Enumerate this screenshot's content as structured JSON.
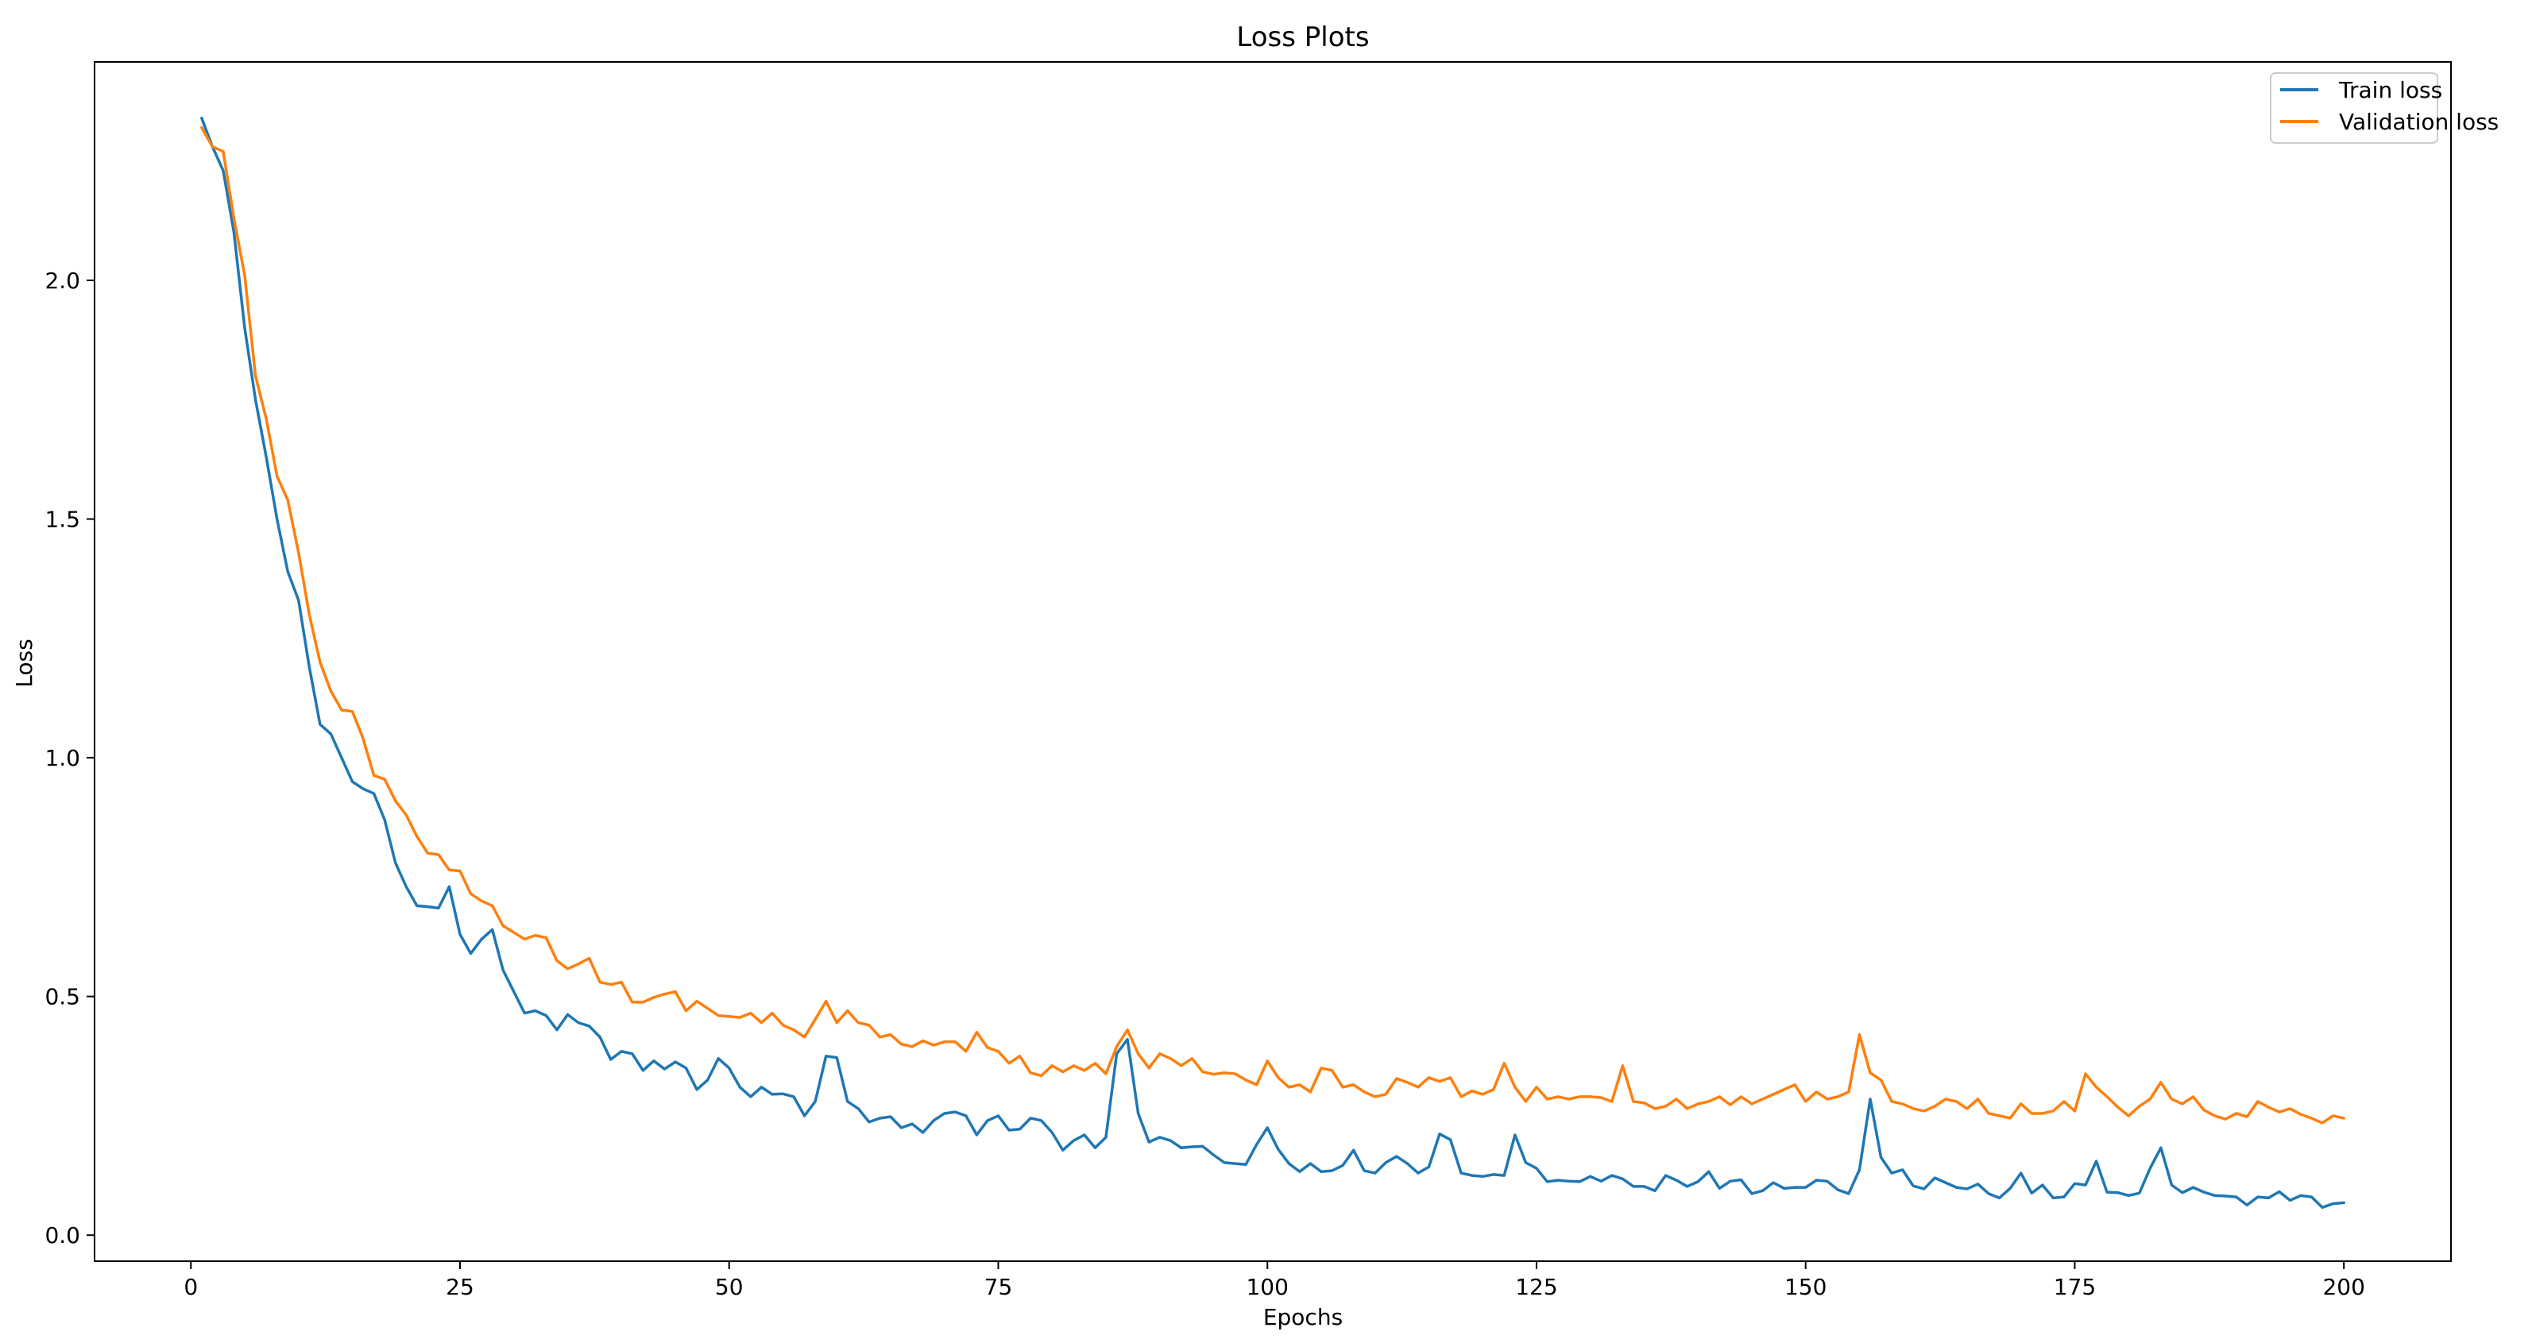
{
  "chart_data": {
    "type": "line",
    "title": "Loss Plots",
    "xlabel": "Epochs",
    "ylabel": "Loss",
    "xlim": [
      -8.95,
      209.95
    ],
    "ylim": [
      -0.0545,
      2.4575
    ],
    "xticks": [
      0,
      25,
      50,
      75,
      100,
      125,
      150,
      175,
      200
    ],
    "yticks": [
      0.0,
      0.5,
      1.0,
      1.5,
      2.0
    ],
    "ytick_labels": [
      "0.0",
      "0.5",
      "1.0",
      "1.5",
      "2.0"
    ],
    "grid": false,
    "legend_position": "top-right",
    "series": [
      {
        "name": "Train loss",
        "color": "#1f77b4",
        "x_start": 1,
        "x_step": 1,
        "values": [
          2.34,
          2.28,
          2.23,
          2.1,
          1.9,
          1.75,
          1.63,
          1.5,
          1.39,
          1.33,
          1.19,
          1.07,
          1.05,
          1.0,
          0.95,
          0.935,
          0.925,
          0.87,
          0.78,
          0.73,
          0.69,
          0.688,
          0.685,
          0.73,
          0.63,
          0.59,
          0.62,
          0.64,
          0.555,
          0.51,
          0.465,
          0.47,
          0.46,
          0.43,
          0.462,
          0.445,
          0.438,
          0.415,
          0.368,
          0.385,
          0.38,
          0.345,
          0.365,
          0.348,
          0.363,
          0.35,
          0.305,
          0.325,
          0.37,
          0.35,
          0.31,
          0.29,
          0.31,
          0.295,
          0.296,
          0.29,
          0.25,
          0.28,
          0.375,
          0.372,
          0.28,
          0.265,
          0.237,
          0.245,
          0.248,
          0.225,
          0.233,
          0.215,
          0.24,
          0.255,
          0.258,
          0.25,
          0.21,
          0.24,
          0.25,
          0.22,
          0.222,
          0.245,
          0.24,
          0.215,
          0.178,
          0.198,
          0.21,
          0.183,
          0.205,
          0.38,
          0.41,
          0.255,
          0.195,
          0.205,
          0.198,
          0.183,
          0.185,
          0.186,
          0.168,
          0.152,
          0.15,
          0.148,
          0.19,
          0.225,
          0.18,
          0.15,
          0.133,
          0.15,
          0.133,
          0.135,
          0.146,
          0.178,
          0.135,
          0.13,
          0.152,
          0.165,
          0.15,
          0.13,
          0.143,
          0.212,
          0.2,
          0.13,
          0.125,
          0.123,
          0.127,
          0.125,
          0.21,
          0.152,
          0.14,
          0.112,
          0.115,
          0.113,
          0.112,
          0.123,
          0.113,
          0.125,
          0.118,
          0.102,
          0.102,
          0.093,
          0.125,
          0.115,
          0.102,
          0.112,
          0.133,
          0.098,
          0.113,
          0.116,
          0.087,
          0.093,
          0.11,
          0.098,
          0.1,
          0.1,
          0.115,
          0.113,
          0.095,
          0.087,
          0.137,
          0.285,
          0.163,
          0.13,
          0.137,
          0.103,
          0.097,
          0.12,
          0.11,
          0.1,
          0.097,
          0.107,
          0.087,
          0.078,
          0.098,
          0.13,
          0.088,
          0.105,
          0.078,
          0.08,
          0.108,
          0.105,
          0.155,
          0.09,
          0.089,
          0.083,
          0.088,
          0.14,
          0.183,
          0.105,
          0.089,
          0.1,
          0.09,
          0.083,
          0.082,
          0.08,
          0.063,
          0.08,
          0.078,
          0.091,
          0.073,
          0.083,
          0.08,
          0.058,
          0.066,
          0.068
        ]
      },
      {
        "name": "Validation loss",
        "color": "#ff7f0e",
        "x_start": 1,
        "x_step": 1,
        "values": [
          2.32,
          2.28,
          2.27,
          2.13,
          2.01,
          1.8,
          1.71,
          1.59,
          1.54,
          1.43,
          1.3,
          1.2,
          1.14,
          1.1,
          1.097,
          1.04,
          0.963,
          0.955,
          0.91,
          0.88,
          0.835,
          0.8,
          0.797,
          0.765,
          0.763,
          0.715,
          0.7,
          0.69,
          0.648,
          0.634,
          0.62,
          0.628,
          0.623,
          0.575,
          0.558,
          0.568,
          0.58,
          0.53,
          0.525,
          0.53,
          0.488,
          0.488,
          0.498,
          0.505,
          0.51,
          0.47,
          0.49,
          0.475,
          0.46,
          0.458,
          0.456,
          0.465,
          0.445,
          0.465,
          0.44,
          0.43,
          0.415,
          0.452,
          0.49,
          0.445,
          0.47,
          0.445,
          0.44,
          0.415,
          0.42,
          0.4,
          0.395,
          0.407,
          0.398,
          0.405,
          0.405,
          0.385,
          0.425,
          0.393,
          0.385,
          0.36,
          0.375,
          0.34,
          0.334,
          0.355,
          0.342,
          0.355,
          0.345,
          0.36,
          0.338,
          0.395,
          0.43,
          0.38,
          0.35,
          0.38,
          0.37,
          0.355,
          0.37,
          0.342,
          0.337,
          0.34,
          0.338,
          0.325,
          0.315,
          0.365,
          0.33,
          0.31,
          0.315,
          0.3,
          0.35,
          0.345,
          0.31,
          0.315,
          0.3,
          0.29,
          0.295,
          0.328,
          0.32,
          0.31,
          0.33,
          0.322,
          0.33,
          0.29,
          0.302,
          0.295,
          0.305,
          0.36,
          0.31,
          0.28,
          0.31,
          0.285,
          0.29,
          0.285,
          0.29,
          0.29,
          0.288,
          0.28,
          0.355,
          0.28,
          0.277,
          0.265,
          0.27,
          0.285,
          0.265,
          0.275,
          0.28,
          0.29,
          0.273,
          0.29,
          0.275,
          0.285,
          0.295,
          0.305,
          0.315,
          0.28,
          0.3,
          0.285,
          0.29,
          0.3,
          0.42,
          0.34,
          0.325,
          0.28,
          0.275,
          0.265,
          0.26,
          0.27,
          0.285,
          0.28,
          0.265,
          0.285,
          0.255,
          0.25,
          0.245,
          0.275,
          0.255,
          0.255,
          0.26,
          0.28,
          0.26,
          0.338,
          0.31,
          0.29,
          0.268,
          0.25,
          0.27,
          0.285,
          0.32,
          0.285,
          0.275,
          0.29,
          0.262,
          0.25,
          0.243,
          0.255,
          0.248,
          0.28,
          0.268,
          0.258,
          0.265,
          0.253,
          0.245,
          0.235,
          0.25,
          0.245
        ]
      }
    ]
  }
}
